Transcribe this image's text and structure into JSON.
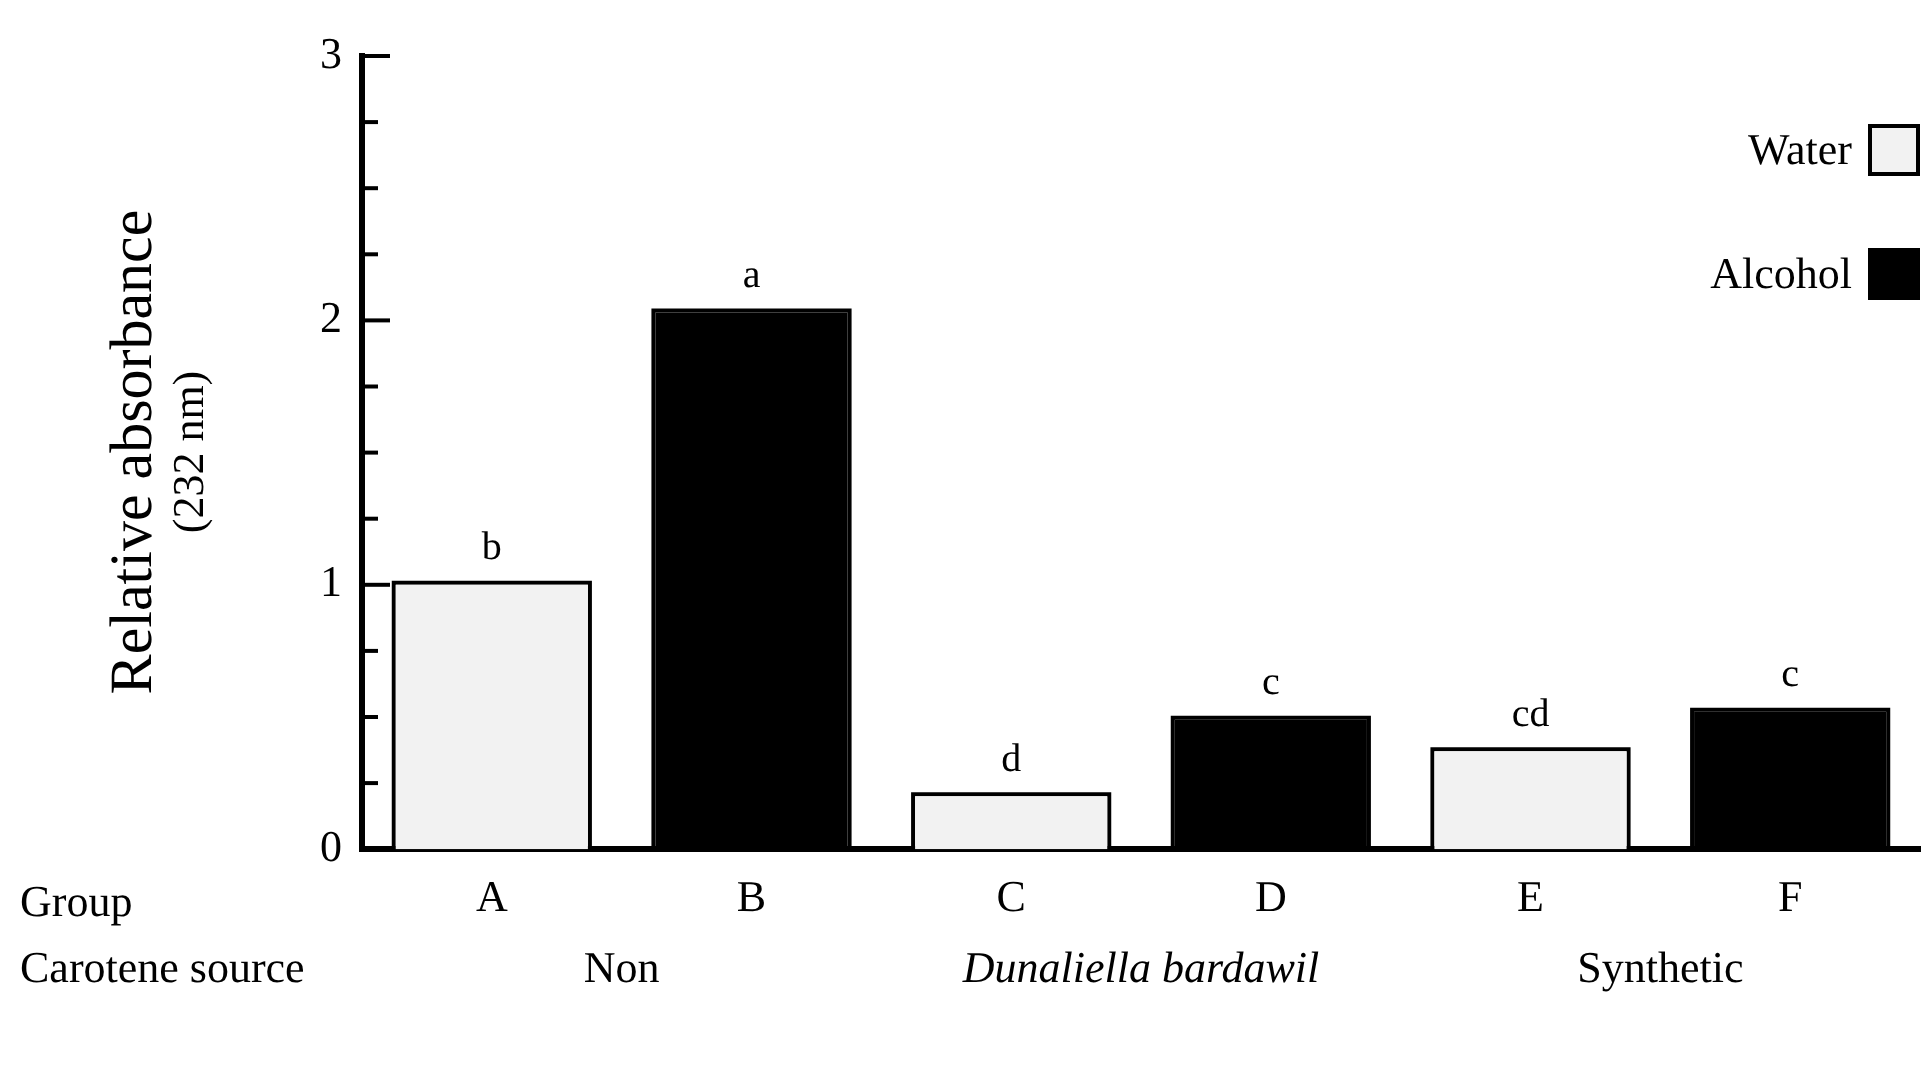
{
  "chart_data": {
    "type": "bar",
    "categories": [
      "A",
      "B",
      "C",
      "D",
      "E",
      "F"
    ],
    "series": [
      {
        "name": "Water",
        "color": "#f2f2f2",
        "values": [
          1.0,
          null,
          0.2,
          null,
          0.37,
          null
        ]
      },
      {
        "name": "Alcohol",
        "color": "#000000",
        "values": [
          null,
          2.03,
          null,
          0.49,
          null,
          0.52
        ]
      }
    ],
    "ylabel": "Relative absorbance\n(232 nm)",
    "xlabel": "Group",
    "ylim": [
      0,
      3
    ],
    "yticks": [
      0,
      {
        "value": 0.25,
        "label": null
      },
      {
        "value": 0.5,
        "label": null
      },
      {
        "value": 0.75,
        "label": null
      },
      1,
      {
        "value": 1.25,
        "label": null
      },
      {
        "value": 1.5,
        "label": null
      },
      {
        "value": 1.75,
        "label": null
      },
      2,
      {
        "value": 2.25,
        "label": null
      },
      {
        "value": 2.5,
        "label": null
      },
      {
        "value": 2.75,
        "label": null
      },
      3
    ],
    "annotations": [
      "Carotene source",
      "Non",
      "Dunaliella bardawil",
      "Synthetic",
      {
        "text": "b",
        "x": "A",
        "y": 1.0
      },
      {
        "text": "a",
        "x": "B",
        "y": 2.03
      },
      {
        "text": "d",
        "x": "C",
        "y": 0.2
      },
      {
        "text": "c",
        "x": "D",
        "y": 0.49
      },
      {
        "text": "cd",
        "x": "E",
        "y": 0.37
      },
      {
        "text": "c",
        "x": "F",
        "y": 0.52
      }
    ],
    "legend": "top right",
    "grid": false
  }
}
